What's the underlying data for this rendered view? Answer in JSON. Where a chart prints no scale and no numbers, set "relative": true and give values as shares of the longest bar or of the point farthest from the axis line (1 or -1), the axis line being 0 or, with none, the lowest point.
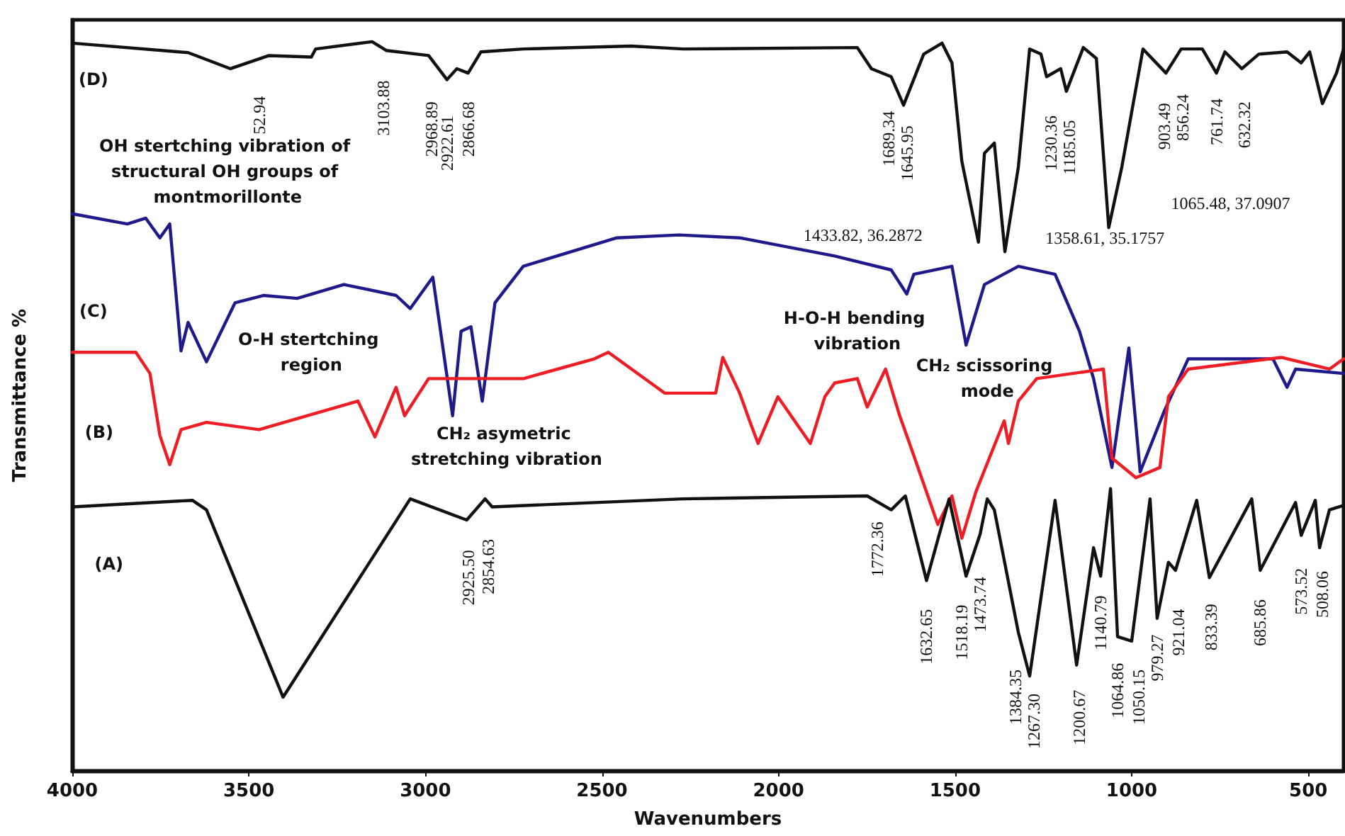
{
  "chart_data": {
    "type": "line",
    "relative": true,
    "xlabel": "Wavenumbers",
    "ylabel": "Transmittance %",
    "xlim": [
      4000,
      400
    ],
    "xticks": [
      4000,
      3500,
      3000,
      2500,
      2000,
      1500,
      1000,
      500
    ],
    "series": [
      {
        "color": "#111111",
        "x": [
          4000,
          3672,
          3552,
          3443,
          3323,
          3311,
          3151,
          3111,
          2991,
          2939,
          2911,
          2879,
          2843,
          2723,
          2418,
          2270,
          1777,
          1737,
          1681,
          1646,
          1589,
          1537,
          1509,
          1481,
          1434,
          1417,
          1389,
          1359,
          1321,
          1289,
          1257,
          1241,
          1201,
          1185,
          1137,
          1100,
          1065,
          1028,
          968,
          903,
          860,
          800,
          760,
          736,
          688,
          640,
          560,
          520,
          496,
          460,
          420,
          400
        ],
        "values": [
          0.998,
          0.985,
          0.963,
          0.981,
          0.979,
          0.99,
          1,
          0.988,
          0.981,
          0.948,
          0.963,
          0.957,
          0.986,
          0.99,
          0.994,
          0.99,
          0.992,
          0.963,
          0.952,
          0.913,
          0.983,
          0.998,
          0.971,
          0.836,
          0.725,
          0.847,
          0.861,
          0.712,
          0.828,
          0.99,
          0.983,
          0.952,
          0.963,
          0.932,
          0.992,
          0.977,
          0.745,
          0.828,
          0.99,
          0.957,
          0.99,
          0.99,
          0.957,
          0.986,
          0.963,
          0.983,
          0.986,
          0.971,
          0.986,
          0.915,
          0.957,
          0.99
        ]
      },
      {
        "color": "#1f1a8a",
        "x": [
          4000,
          3844,
          3792,
          3752,
          3724,
          3692,
          3672,
          3620,
          3539,
          3459,
          3363,
          3231,
          3083,
          3043,
          2979,
          2923,
          2899,
          2871,
          2839,
          2803,
          2723,
          2458,
          2282,
          2110,
          1841,
          1681,
          1637,
          1617,
          1509,
          1469,
          1417,
          1321,
          1217,
          1148,
          1108,
          1056,
          1008,
          976,
          908,
          840,
          708,
          600,
          560,
          536,
          400
        ],
        "values": [
          0.764,
          0.75,
          0.758,
          0.731,
          0.75,
          0.576,
          0.615,
          0.561,
          0.642,
          0.652,
          0.648,
          0.667,
          0.652,
          0.634,
          0.677,
          0.487,
          0.603,
          0.609,
          0.507,
          0.642,
          0.692,
          0.731,
          0.735,
          0.731,
          0.706,
          0.687,
          0.654,
          0.681,
          0.692,
          0.584,
          0.667,
          0.692,
          0.681,
          0.603,
          0.538,
          0.416,
          0.58,
          0.41,
          0.493,
          0.565,
          0.565,
          0.565,
          0.526,
          0.551,
          0.545
        ]
      },
      {
        "color": "#ee1c24",
        "x": [
          4000,
          3820,
          3780,
          3752,
          3724,
          3692,
          3620,
          3471,
          3191,
          3143,
          3083,
          3059,
          2991,
          2722,
          2522,
          2482,
          2322,
          2178,
          2158,
          2110,
          2082,
          2058,
          2002,
          1910,
          1869,
          1841,
          1777,
          1749,
          1697,
          1657,
          1629,
          1549,
          1509,
          1481,
          1441,
          1361,
          1349,
          1321,
          1269,
          1080,
          1056,
          988,
          920,
          896,
          840,
          576,
          440,
          400
        ],
        "values": [
          0.574,
          0.574,
          0.545,
          0.46,
          0.42,
          0.468,
          0.478,
          0.468,
          0.507,
          0.458,
          0.526,
          0.487,
          0.538,
          0.538,
          0.565,
          0.574,
          0.518,
          0.518,
          0.567,
          0.518,
          0.48,
          0.449,
          0.513,
          0.449,
          0.513,
          0.532,
          0.538,
          0.499,
          0.551,
          0.487,
          0.449,
          0.338,
          0.377,
          0.319,
          0.383,
          0.48,
          0.449,
          0.507,
          0.538,
          0.551,
          0.429,
          0.402,
          0.416,
          0.513,
          0.551,
          0.567,
          0.551,
          0.565
        ]
      },
      {
        "color": "#111111",
        "x": [
          4000,
          3660,
          3620,
          3403,
          3043,
          2883,
          2831,
          2811,
          2270,
          1749,
          1681,
          1641,
          1581,
          1517,
          1469,
          1429,
          1409,
          1389,
          1321,
          1289,
          1217,
          1156,
          1108,
          1088,
          1060,
          1040,
          1000,
          948,
          928,
          896,
          876,
          816,
          780,
          660,
          636,
          536,
          520,
          480,
          468,
          440,
          400
        ],
        "values": [
          0.362,
          0.371,
          0.358,
          0.101,
          0.373,
          0.344,
          0.373,
          0.362,
          0.373,
          0.377,
          0.358,
          0.377,
          0.261,
          0.373,
          0.267,
          0.325,
          0.373,
          0.358,
          0.19,
          0.13,
          0.371,
          0.145,
          0.306,
          0.267,
          0.387,
          0.184,
          0.178,
          0.373,
          0.209,
          0.286,
          0.275,
          0.371,
          0.265,
          0.373,
          0.275,
          0.368,
          0.323,
          0.371,
          0.306,
          0.358,
          0.364
        ]
      }
    ],
    "annotations": [
      "(D)",
      "52.94",
      "3103.88",
      "2968.89",
      "2922.61",
      "2866.68",
      "1689.34",
      "1645.95",
      "1230.36",
      "1185.05",
      "903.49",
      "856.24",
      "761.74",
      "632.32",
      "1433.82, 36.2872",
      "1358.61, 35.1757",
      "1065.48, 37.0907",
      "OH stertching vibration of structural OH groups of montmorillonte",
      "(C)",
      "O-H stertching region",
      "H-O-H bending vibration",
      "CH₂ scissoring mode",
      "(B)",
      "CH₂ asymetric stretching vibration",
      "(A)",
      "2925.50",
      "2854.63",
      "1772.36",
      "1632.65",
      "1518.19",
      "1473.74",
      "1384.35",
      "1267.30",
      "1200.67",
      "1140.79",
      "1064.86",
      "1050.15",
      "979.27",
      "921.04",
      "833.39",
      "685.86",
      "573.52",
      "508.06"
    ]
  }
}
